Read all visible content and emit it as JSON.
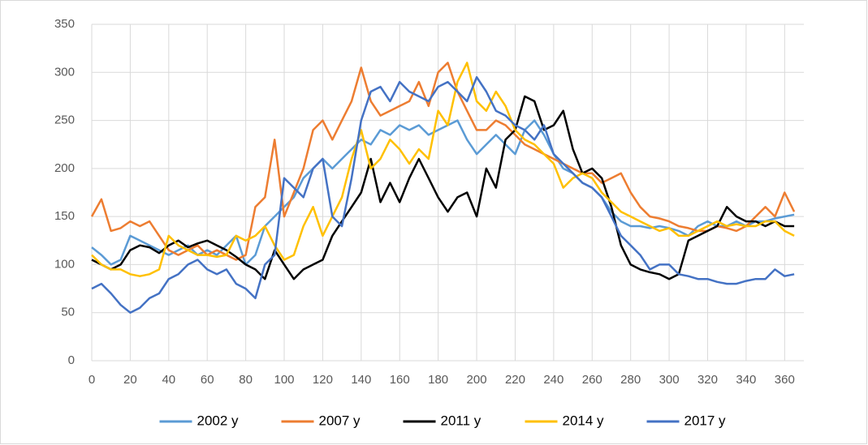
{
  "chart_data": {
    "type": "line",
    "x": [
      0,
      5,
      10,
      15,
      20,
      25,
      30,
      35,
      40,
      45,
      50,
      55,
      60,
      65,
      70,
      75,
      80,
      85,
      90,
      95,
      100,
      105,
      110,
      115,
      120,
      125,
      130,
      135,
      140,
      145,
      150,
      155,
      160,
      165,
      170,
      175,
      180,
      185,
      190,
      195,
      200,
      205,
      210,
      215,
      220,
      225,
      230,
      235,
      240,
      245,
      250,
      255,
      260,
      265,
      270,
      275,
      280,
      285,
      290,
      295,
      300,
      305,
      310,
      315,
      320,
      325,
      330,
      335,
      340,
      345,
      350,
      355,
      360,
      365
    ],
    "series": [
      {
        "name": "2002 y",
        "color": "#5b9bd5",
        "values": [
          118,
          110,
          100,
          105,
          130,
          125,
          120,
          115,
          110,
          115,
          120,
          110,
          115,
          110,
          120,
          130,
          100,
          110,
          140,
          150,
          160,
          170,
          190,
          200,
          210,
          200,
          210,
          220,
          230,
          225,
          240,
          235,
          245,
          240,
          245,
          235,
          240,
          245,
          250,
          230,
          215,
          225,
          235,
          225,
          215,
          240,
          250,
          235,
          215,
          200,
          195,
          185,
          180,
          170,
          155,
          145,
          140,
          140,
          138,
          140,
          138,
          135,
          130,
          140,
          145,
          140,
          140,
          145,
          140,
          145,
          145,
          148,
          150,
          152
        ]
      },
      {
        "name": "2007 y",
        "color": "#ed7d31",
        "values": [
          150,
          168,
          135,
          138,
          145,
          140,
          145,
          130,
          115,
          110,
          115,
          120,
          110,
          115,
          110,
          105,
          110,
          160,
          170,
          230,
          150,
          175,
          200,
          240,
          250,
          230,
          250,
          270,
          305,
          270,
          255,
          260,
          265,
          270,
          290,
          265,
          300,
          310,
          280,
          260,
          240,
          240,
          250,
          245,
          235,
          225,
          220,
          215,
          210,
          205,
          200,
          195,
          195,
          185,
          190,
          195,
          175,
          160,
          150,
          148,
          145,
          140,
          138,
          135,
          135,
          140,
          138,
          135,
          140,
          150,
          160,
          150,
          175,
          155
        ]
      },
      {
        "name": "2011 y",
        "color": "#000000",
        "values": [
          105,
          100,
          95,
          100,
          115,
          120,
          118,
          112,
          120,
          125,
          118,
          122,
          125,
          120,
          115,
          108,
          100,
          95,
          85,
          115,
          100,
          85,
          95,
          100,
          105,
          130,
          145,
          160,
          175,
          210,
          165,
          185,
          165,
          190,
          210,
          190,
          170,
          155,
          170,
          175,
          150,
          200,
          180,
          230,
          240,
          275,
          270,
          240,
          245,
          260,
          220,
          195,
          200,
          190,
          160,
          120,
          100,
          95,
          92,
          90,
          85,
          90,
          125,
          130,
          135,
          140,
          160,
          150,
          145,
          145,
          140,
          145,
          140,
          140
        ]
      },
      {
        "name": "2014 y",
        "color": "#ffc000",
        "values": [
          110,
          100,
          95,
          95,
          90,
          88,
          90,
          95,
          130,
          120,
          115,
          110,
          110,
          108,
          110,
          130,
          125,
          130,
          140,
          120,
          105,
          110,
          140,
          160,
          130,
          150,
          170,
          210,
          240,
          200,
          210,
          230,
          220,
          205,
          220,
          210,
          260,
          245,
          290,
          310,
          270,
          260,
          280,
          265,
          240,
          230,
          225,
          215,
          205,
          180,
          190,
          195,
          190,
          175,
          165,
          155,
          150,
          145,
          140,
          135,
          138,
          130,
          130,
          135,
          140,
          145,
          140,
          142,
          140,
          140,
          145,
          145,
          135,
          130
        ]
      },
      {
        "name": "2017 y",
        "color": "#4472c4",
        "values": [
          75,
          80,
          70,
          58,
          50,
          55,
          65,
          70,
          85,
          90,
          100,
          105,
          95,
          90,
          95,
          80,
          75,
          65,
          100,
          110,
          190,
          180,
          170,
          200,
          210,
          150,
          140,
          190,
          250,
          280,
          285,
          270,
          290,
          280,
          275,
          270,
          285,
          290,
          280,
          270,
          295,
          280,
          260,
          255,
          245,
          240,
          230,
          245,
          215,
          205,
          195,
          185,
          180,
          170,
          150,
          130,
          120,
          110,
          95,
          100,
          100,
          90,
          88,
          85,
          85,
          82,
          80,
          80,
          83,
          85,
          85,
          95,
          88,
          90
        ]
      }
    ],
    "xlim": [
      0,
      370
    ],
    "xticks": [
      0,
      20,
      40,
      60,
      80,
      100,
      120,
      140,
      160,
      180,
      200,
      220,
      240,
      260,
      280,
      300,
      320,
      340,
      360
    ],
    "ylim": [
      0,
      350
    ],
    "yticks": [
      0,
      50,
      100,
      150,
      200,
      250,
      300,
      350
    ],
    "grid": true,
    "legend": "bottom"
  }
}
